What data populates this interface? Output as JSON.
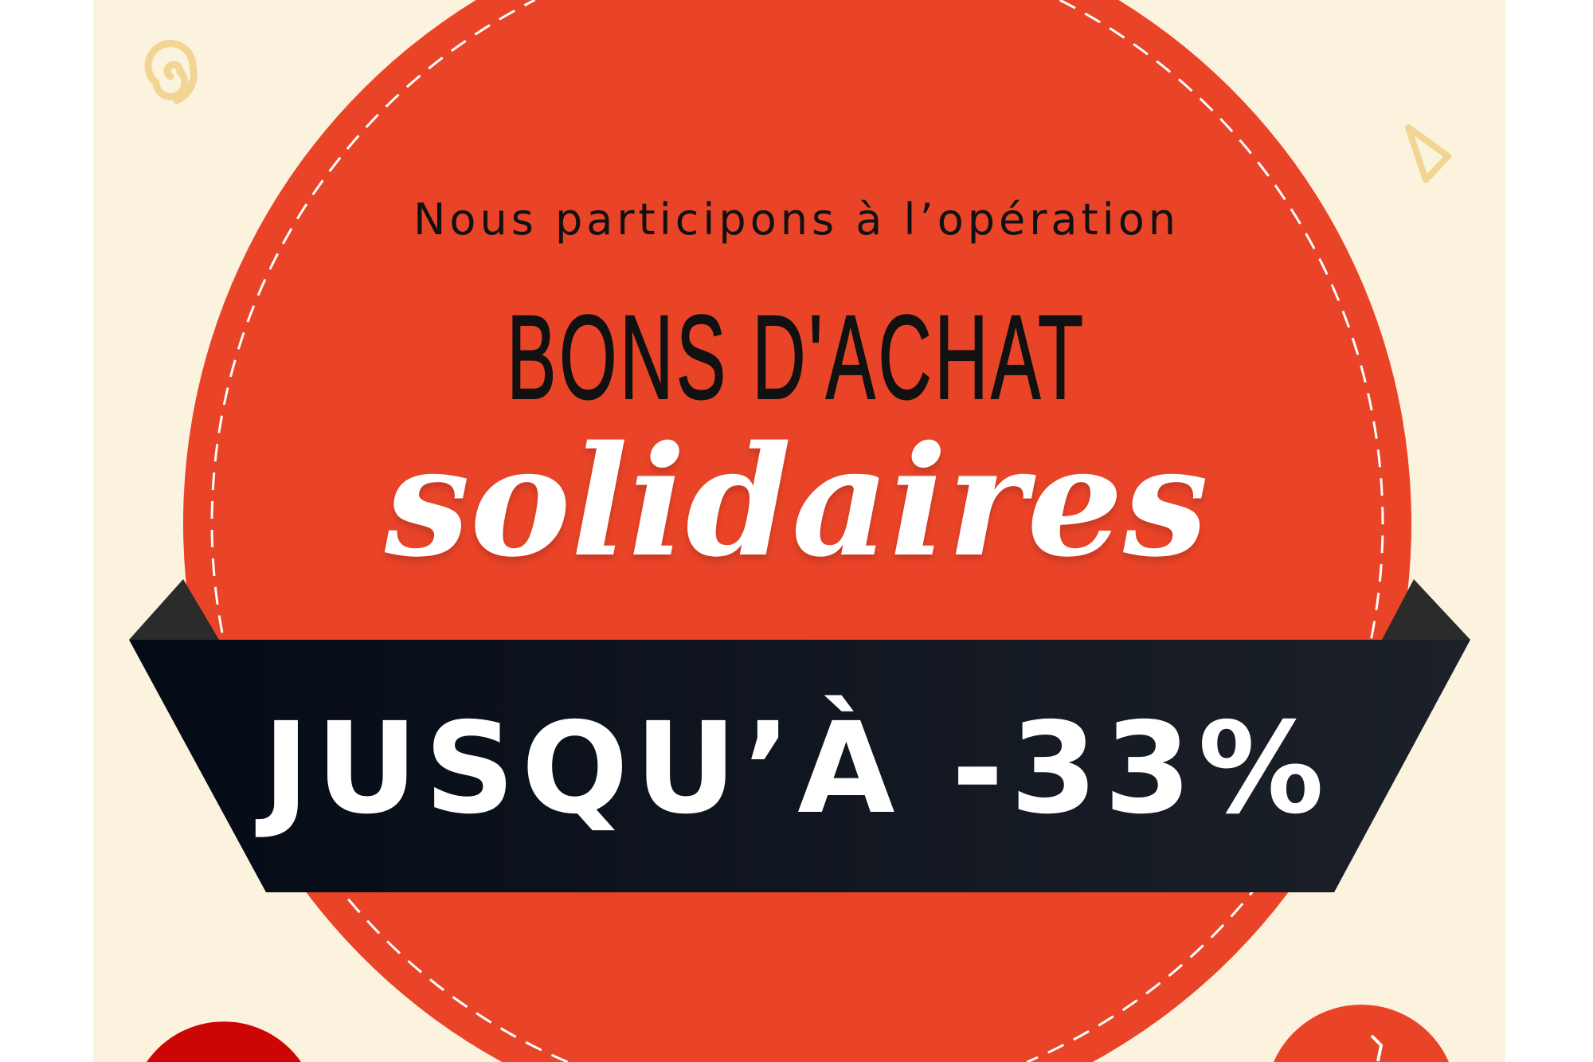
{
  "intro": "Nous participons à l’opération",
  "title": "BONS D'ACHAT",
  "script_title": "solidaires",
  "discount": "JUSQU’À -33%",
  "colors": {
    "background": "#FCF3DF",
    "circle": "#E94428",
    "ribbon_dark": "#050B16",
    "ribbon_light": "#1C2129",
    "ribbon_fold": "#2B2B2B",
    "accent_red": "#CC0605",
    "decor": "#F2D493"
  },
  "icons": [
    "spiral-decor-icon",
    "triangle-decor-icon"
  ]
}
